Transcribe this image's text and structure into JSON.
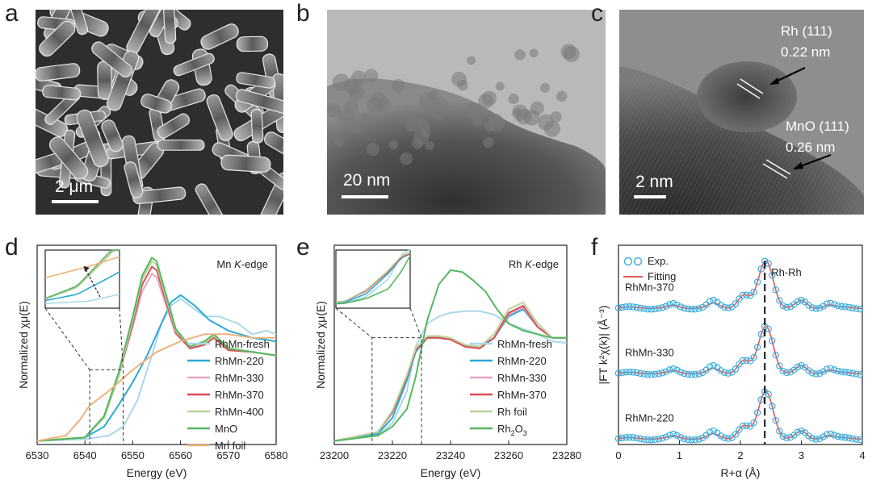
{
  "panels": {
    "a": {
      "letter": "a",
      "scale_bar": "2 μm"
    },
    "b": {
      "letter": "b",
      "scale_bar": "20 nm"
    },
    "c": {
      "letter": "c",
      "scale_bar": "2 nm",
      "label1_line1": "Rh (111)",
      "label1_line2": "0.22 nm",
      "label2_line1": "MnO (111)",
      "label2_line2": "0.26 nm"
    },
    "d": {
      "letter": "d"
    },
    "e": {
      "letter": "e"
    },
    "f": {
      "letter": "f"
    }
  },
  "colors": {
    "fresh": "#a9d8ea",
    "r220": "#2aa9d6",
    "r330": "#e4a6c4",
    "r370": "#d94f55",
    "r400": "#b9d49a",
    "mno": "#54b860",
    "mnfoil": "#eeb37a",
    "rhfoil": "#b9d49a",
    "rh2o3": "#54b860",
    "exp": "#3aaee0",
    "fit": "#e05a5a"
  },
  "chart_data": [
    {
      "type": "line",
      "edge_label_prefix": "Mn ",
      "edge_label_k": "K",
      "edge_label_suffix": "-edge",
      "xlabel": "Energy (eV)",
      "ylabel": "Normalized χμ(E)",
      "xlim": [
        6530,
        6580
      ],
      "xticks": [
        "6530",
        "6540",
        "6550",
        "6560",
        "6570",
        "6580"
      ],
      "series": [
        {
          "name": "RhMn-fresh",
          "color_key": "fresh",
          "x": [
            6530,
            6540,
            6545,
            6548,
            6551,
            6554,
            6556,
            6558,
            6560,
            6562,
            6565,
            6568,
            6572,
            6575,
            6578,
            6580
          ],
          "y": [
            0.02,
            0.03,
            0.05,
            0.1,
            0.25,
            0.5,
            0.68,
            0.78,
            0.82,
            0.78,
            0.72,
            0.72,
            0.68,
            0.62,
            0.64,
            0.62
          ]
        },
        {
          "name": "RhMn-220",
          "color_key": "r220",
          "x": [
            6530,
            6540,
            6544,
            6547,
            6550,
            6553,
            6556,
            6558,
            6560,
            6563,
            6566,
            6570,
            6575,
            6580
          ],
          "y": [
            0.02,
            0.04,
            0.1,
            0.22,
            0.35,
            0.5,
            0.68,
            0.8,
            0.84,
            0.78,
            0.7,
            0.64,
            0.6,
            0.58
          ]
        },
        {
          "name": "RhMn-330",
          "color_key": "r330",
          "x": [
            6530,
            6540,
            6544,
            6547,
            6550,
            6552,
            6554,
            6555,
            6557,
            6559,
            6562,
            6565,
            6567,
            6570,
            6575,
            6580
          ],
          "y": [
            0.02,
            0.04,
            0.15,
            0.38,
            0.66,
            0.86,
            0.96,
            0.94,
            0.78,
            0.62,
            0.54,
            0.56,
            0.6,
            0.53,
            0.52,
            0.5
          ]
        },
        {
          "name": "RhMn-370",
          "color_key": "r370",
          "x": [
            6530,
            6540,
            6544,
            6547,
            6550,
            6552,
            6554,
            6555,
            6557,
            6559,
            6562,
            6565,
            6567,
            6570,
            6575,
            6580
          ],
          "y": [
            0.02,
            0.04,
            0.15,
            0.38,
            0.68,
            0.9,
            1.0,
            0.98,
            0.8,
            0.63,
            0.54,
            0.56,
            0.6,
            0.53,
            0.52,
            0.5
          ]
        },
        {
          "name": "RhMn-400",
          "color_key": "r400",
          "x": [
            6530,
            6540,
            6544,
            6547,
            6550,
            6552,
            6554,
            6555,
            6557,
            6559,
            6562,
            6565,
            6567,
            6570,
            6575,
            6580
          ],
          "y": [
            0.02,
            0.04,
            0.15,
            0.38,
            0.7,
            0.93,
            1.03,
            1.01,
            0.82,
            0.64,
            0.55,
            0.57,
            0.61,
            0.54,
            0.52,
            0.5
          ]
        },
        {
          "name": "MnO",
          "color_key": "mno",
          "x": [
            6530,
            6540,
            6544,
            6547,
            6550,
            6552,
            6554,
            6555,
            6557,
            6559,
            6562,
            6565,
            6567,
            6570,
            6575,
            6580
          ],
          "y": [
            0.02,
            0.04,
            0.16,
            0.4,
            0.72,
            0.95,
            1.05,
            1.03,
            0.84,
            0.65,
            0.55,
            0.58,
            0.62,
            0.54,
            0.52,
            0.5
          ]
        },
        {
          "name": "Mn foil",
          "color_key": "mnfoil",
          "x": [
            6530,
            6536,
            6539,
            6541,
            6545,
            6550,
            6555,
            6560,
            6565,
            6570,
            6575,
            6580
          ],
          "y": [
            0.02,
            0.05,
            0.14,
            0.22,
            0.3,
            0.42,
            0.52,
            0.58,
            0.62,
            0.62,
            0.6,
            0.6
          ]
        }
      ]
    },
    {
      "type": "line",
      "edge_label_prefix": "Rh ",
      "edge_label_k": "K",
      "edge_label_suffix": "-edge",
      "xlabel": "Energy (eV)",
      "ylabel": "Normalized χμ(E)",
      "xlim": [
        23200,
        23280
      ],
      "xticks": [
        "23200",
        "23220",
        "23240",
        "23260",
        "23280"
      ],
      "series": [
        {
          "name": "RhMn-fresh",
          "color_key": "fresh",
          "x": [
            23200,
            23215,
            23220,
            23225,
            23228,
            23232,
            23236,
            23240,
            23245,
            23250,
            23255,
            23260,
            23265,
            23270,
            23275,
            23280
          ],
          "y": [
            0.02,
            0.05,
            0.12,
            0.3,
            0.55,
            0.68,
            0.72,
            0.74,
            0.75,
            0.75,
            0.73,
            0.68,
            0.65,
            0.62,
            0.58,
            0.57
          ]
        },
        {
          "name": "RhMn-220",
          "color_key": "r220",
          "x": [
            23200,
            23215,
            23220,
            23225,
            23228,
            23232,
            23236,
            23240,
            23245,
            23250,
            23255,
            23260,
            23265,
            23270,
            23275,
            23280
          ],
          "y": [
            0.02,
            0.06,
            0.15,
            0.36,
            0.52,
            0.6,
            0.6,
            0.59,
            0.56,
            0.55,
            0.6,
            0.72,
            0.76,
            0.66,
            0.6,
            0.6
          ]
        },
        {
          "name": "RhMn-330",
          "color_key": "r330",
          "x": [
            23200,
            23215,
            23220,
            23225,
            23228,
            23232,
            23236,
            23240,
            23245,
            23250,
            23255,
            23260,
            23265,
            23270,
            23275,
            23280
          ],
          "y": [
            0.02,
            0.07,
            0.18,
            0.38,
            0.53,
            0.6,
            0.6,
            0.59,
            0.55,
            0.54,
            0.6,
            0.73,
            0.77,
            0.66,
            0.6,
            0.6
          ]
        },
        {
          "name": "RhMn-370",
          "color_key": "r370",
          "x": [
            23200,
            23215,
            23220,
            23225,
            23228,
            23232,
            23236,
            23240,
            23245,
            23250,
            23255,
            23260,
            23265,
            23270,
            23275,
            23280
          ],
          "y": [
            0.02,
            0.07,
            0.18,
            0.38,
            0.53,
            0.6,
            0.6,
            0.59,
            0.55,
            0.54,
            0.6,
            0.74,
            0.78,
            0.66,
            0.6,
            0.6
          ]
        },
        {
          "name": "Rh foil",
          "color_key": "rhfoil",
          "x": [
            23200,
            23215,
            23220,
            23225,
            23228,
            23232,
            23236,
            23240,
            23245,
            23250,
            23255,
            23260,
            23265,
            23270,
            23275,
            23280
          ],
          "y": [
            0.02,
            0.07,
            0.19,
            0.39,
            0.54,
            0.61,
            0.61,
            0.6,
            0.56,
            0.55,
            0.62,
            0.76,
            0.8,
            0.68,
            0.6,
            0.6
          ]
        },
        {
          "name": "Rh₂O₃",
          "color_key": "rh2o3",
          "x": [
            23200,
            23215,
            23220,
            23225,
            23228,
            23232,
            23236,
            23240,
            23244,
            23248,
            23252,
            23256,
            23260,
            23265,
            23270,
            23275,
            23280
          ],
          "y": [
            0.02,
            0.05,
            0.1,
            0.2,
            0.38,
            0.7,
            0.9,
            0.98,
            0.97,
            0.92,
            0.86,
            0.76,
            0.68,
            0.64,
            0.62,
            0.6,
            0.6
          ]
        }
      ]
    },
    {
      "type": "line",
      "xlabel": "R+α (Å)",
      "ylabel": "|FT k²χ(k)| (Å⁻³)",
      "xlim": [
        0,
        4
      ],
      "xticks": [
        "0",
        "1",
        "2",
        "3",
        "4"
      ],
      "legend": [
        "Exp.",
        "Fitting"
      ],
      "annotation": "Rh-Rh",
      "annotation_x": 2.4,
      "series": [
        {
          "name": "RhMn-370",
          "offset": 2.0
        },
        {
          "name": "RhMn-330",
          "offset": 1.0
        },
        {
          "name": "RhMn-220",
          "offset": 0.0
        }
      ]
    }
  ]
}
